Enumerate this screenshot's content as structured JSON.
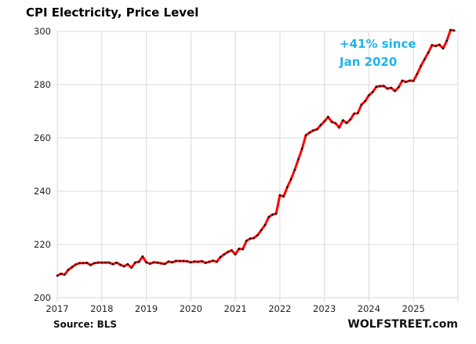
{
  "chart_data": {
    "type": "line",
    "title": "CPI Electricity, Price Level",
    "xlabel": "",
    "ylabel": "",
    "ylim": [
      200,
      300
    ],
    "y_ticks": [
      "200",
      "220",
      "240",
      "260",
      "280",
      "300"
    ],
    "y_tick_values": [
      200,
      220,
      240,
      260,
      280,
      300
    ],
    "x_ticks": [
      "2017",
      "2018",
      "2019",
      "2020",
      "2021",
      "2022",
      "2023",
      "2024",
      "2025"
    ],
    "x_range_years": [
      2017,
      2026
    ],
    "grid": true,
    "legend": "none",
    "annotation": [
      "+41% since",
      "Jan 2020"
    ],
    "source": "Source: BLS",
    "brand": "WOLFSTREET.com",
    "colors": {
      "line": "#ff0000",
      "markers": "#111111",
      "annotation": "#1fb4e8",
      "grid": "#d9d9d9"
    },
    "series": [
      {
        "name": "CPI Electricity",
        "start": "2017-01",
        "frequency": "monthly",
        "values": [
          208.3,
          209.0,
          208.7,
          210.5,
          211.5,
          212.5,
          213.0,
          213.0,
          213.1,
          212.3,
          213.0,
          213.2,
          213.2,
          213.2,
          213.2,
          212.6,
          213.2,
          212.4,
          211.8,
          212.6,
          211.3,
          213.2,
          213.5,
          215.5,
          213.3,
          212.8,
          213.3,
          213.2,
          212.9,
          212.7,
          213.6,
          213.3,
          213.8,
          213.8,
          213.8,
          213.7,
          213.3,
          213.6,
          213.5,
          213.7,
          213.1,
          213.5,
          213.9,
          213.5,
          215.3,
          216.3,
          217.2,
          217.8,
          216.3,
          218.4,
          218.2,
          221.4,
          222.2,
          222.4,
          223.5,
          225.4,
          227.3,
          230.3,
          231.2,
          231.6,
          238.5,
          238.0,
          241.5,
          244.5,
          248.0,
          252.0,
          256.0,
          261.0,
          262.0,
          262.8,
          263.2,
          264.8,
          266.2,
          267.9,
          266.0,
          265.5,
          263.9,
          266.6,
          265.6,
          266.9,
          269.1,
          269.3,
          272.5,
          273.8,
          276.0,
          277.2,
          279.2,
          279.4,
          279.5,
          278.5,
          278.8,
          277.6,
          279.0,
          281.5,
          281.0,
          281.5,
          281.4,
          284.0,
          287.0,
          289.5,
          292.0,
          294.8,
          294.5,
          295.0,
          293.6,
          296.5,
          300.5,
          300.3
        ]
      }
    ]
  }
}
